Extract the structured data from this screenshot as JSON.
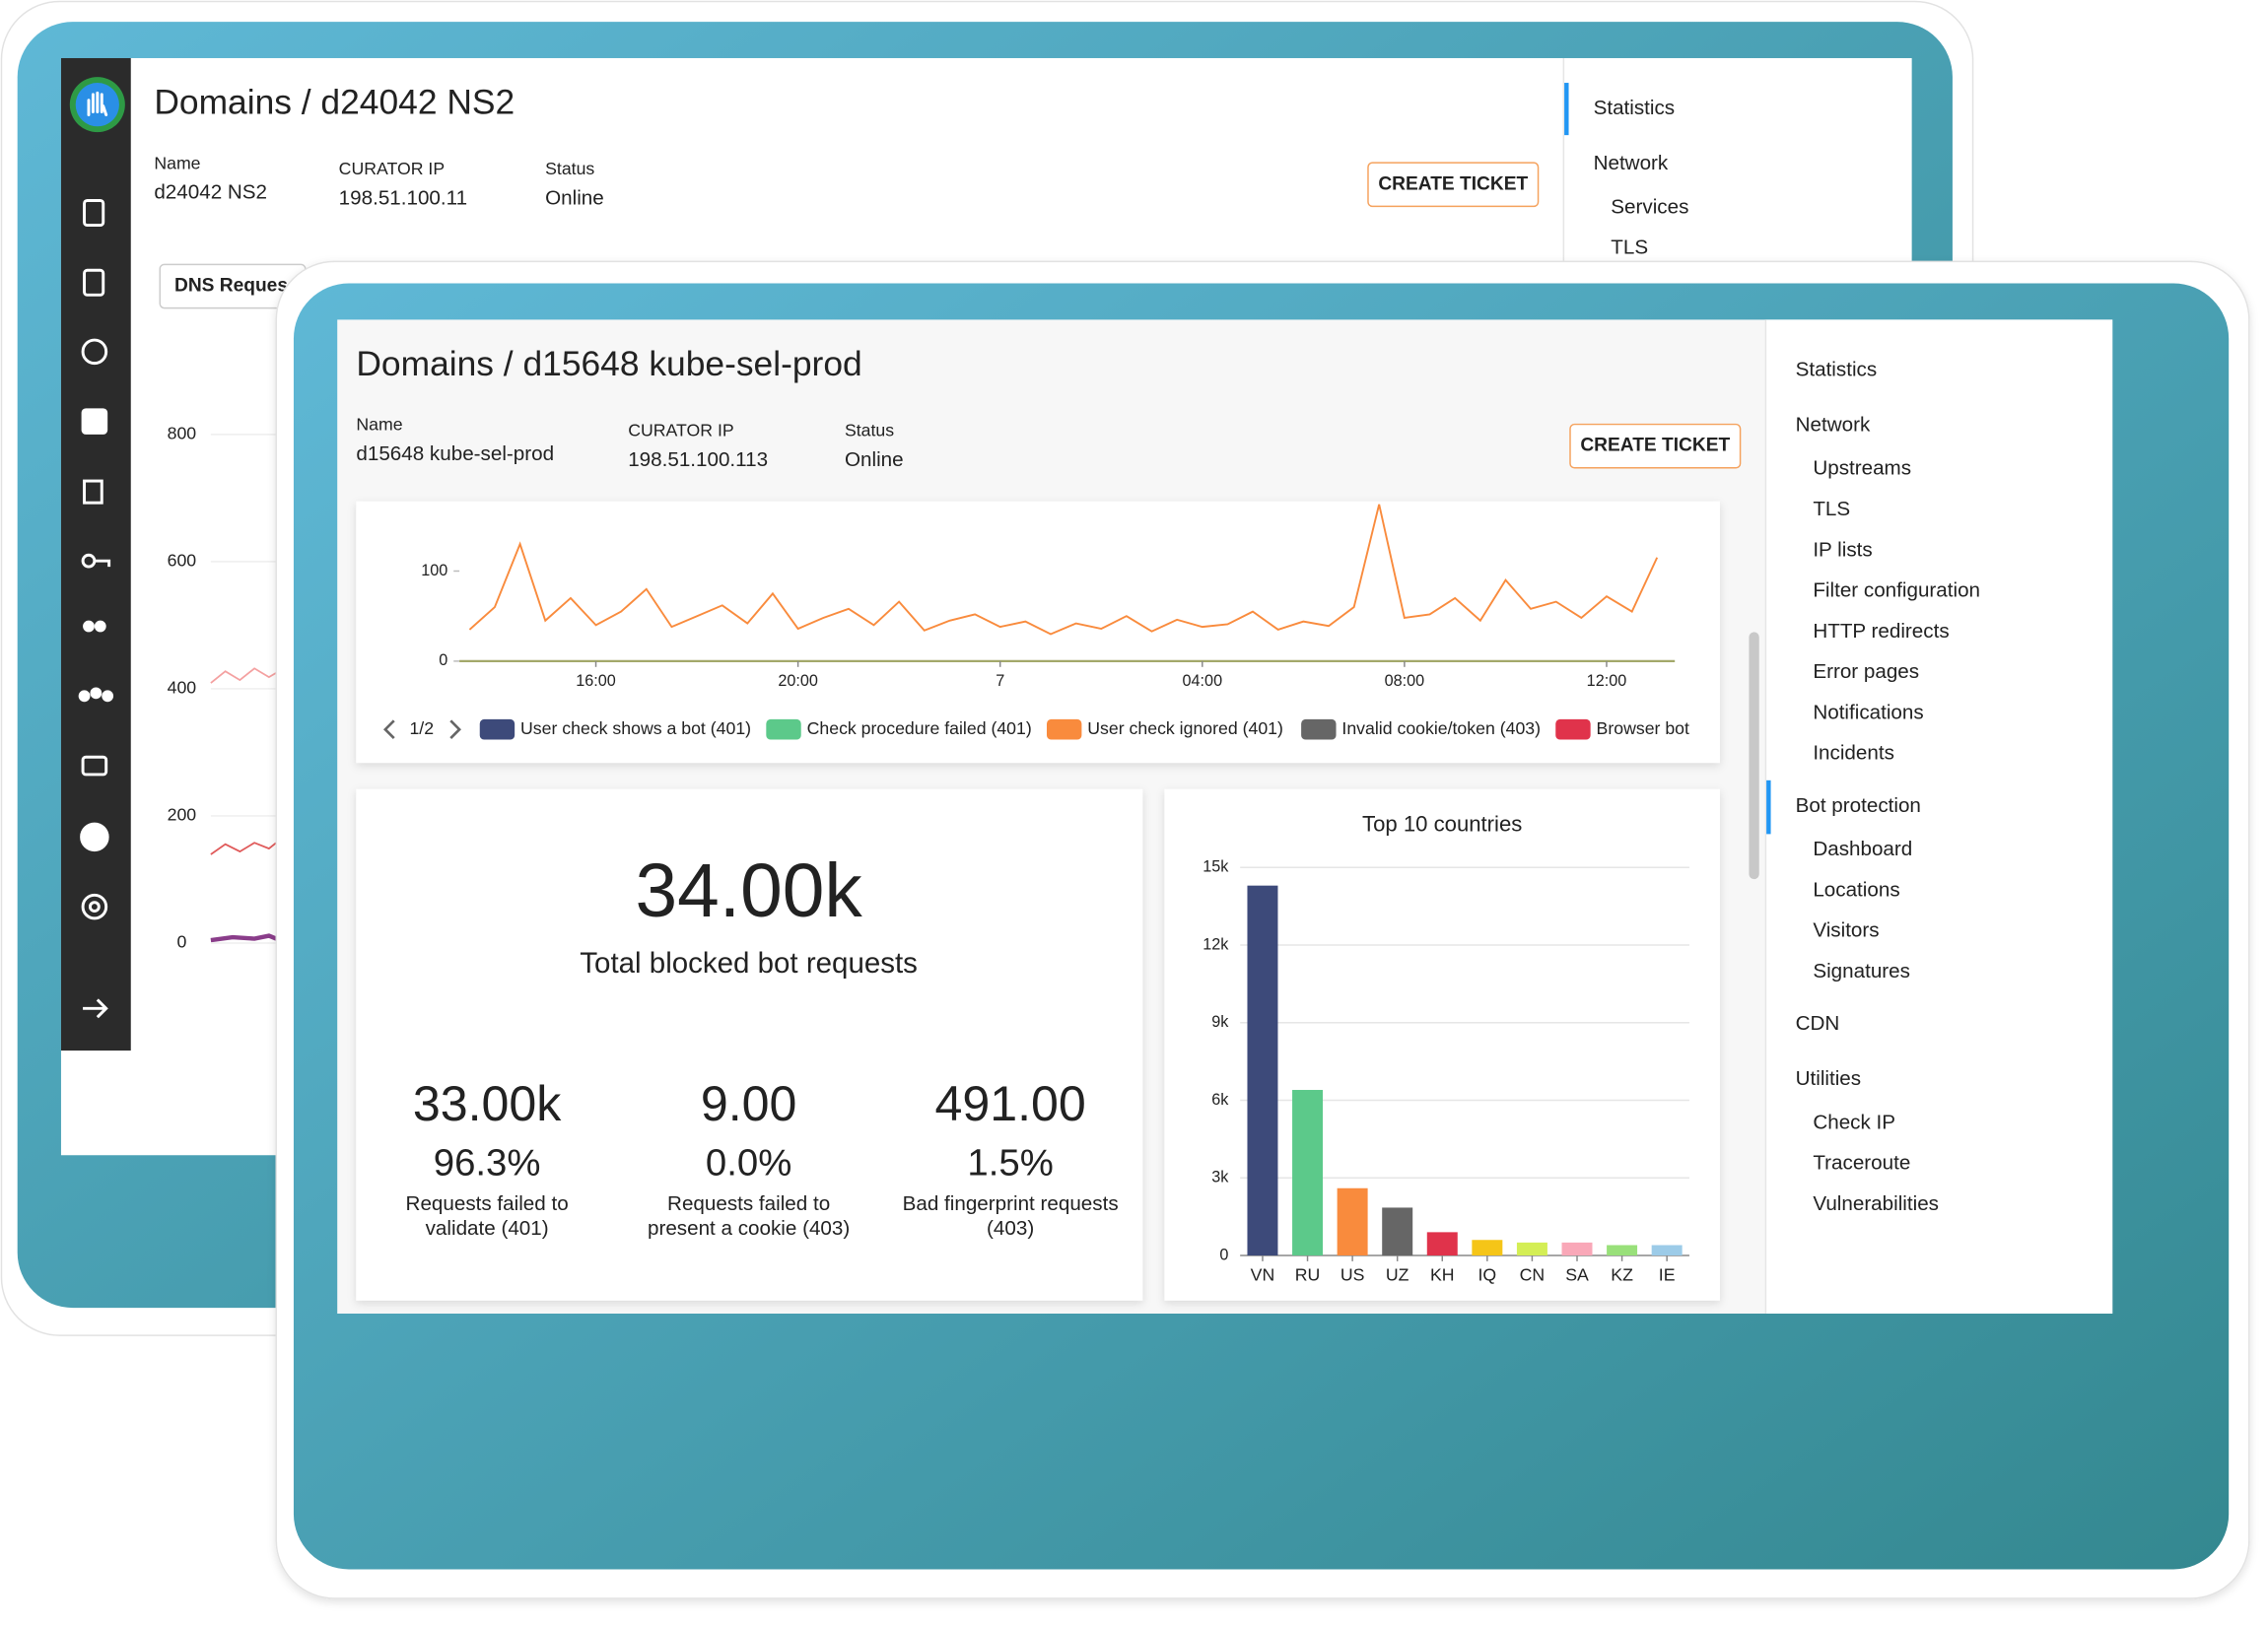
{
  "back_window": {
    "title": "Domains / d24042 NS2",
    "fields": [
      {
        "label": "Name",
        "value": "d24042 NS2"
      },
      {
        "label": "CURATOR IP",
        "value": "198.51.100.11"
      },
      {
        "label": "Status",
        "value": "Online"
      }
    ],
    "button": "CREATE TICKET",
    "nav": [
      "Statistics",
      "Network",
      "Services",
      "TLS"
    ],
    "tab": "DNS Reques",
    "yticks": [
      800,
      600,
      400,
      200,
      0
    ]
  },
  "front_window": {
    "title": "Domains / d15648 kube-sel-prod",
    "fields": [
      {
        "label": "Name",
        "value": "d15648 kube-sel-prod"
      },
      {
        "label": "CURATOR IP",
        "value": "198.51.100.113"
      },
      {
        "label": "Status",
        "value": "Online"
      }
    ],
    "button": "CREATE TICKET",
    "legend_page": "1/2",
    "summary": {
      "total": "34.00k",
      "total_label": "Total blocked bot requests",
      "items": [
        {
          "value": "33.00k",
          "percent": "96.3%",
          "label": [
            "Requests failed to",
            "validate (401)"
          ]
        },
        {
          "value": "9.00",
          "percent": "0.0%",
          "label": [
            "Requests failed to",
            "present a cookie (403)"
          ]
        },
        {
          "value": "491.00",
          "percent": "1.5%",
          "label": [
            "Bad fingerprint requests",
            "(403)"
          ]
        }
      ]
    },
    "nav": [
      {
        "text": "Statistics",
        "level": 0
      },
      {
        "text": "Network",
        "level": 0
      },
      {
        "text": "Upstreams",
        "level": 1
      },
      {
        "text": "TLS",
        "level": 1
      },
      {
        "text": "IP lists",
        "level": 1
      },
      {
        "text": "Filter configuration",
        "level": 1
      },
      {
        "text": "HTTP redirects",
        "level": 1
      },
      {
        "text": "Error pages",
        "level": 1
      },
      {
        "text": "Notifications",
        "level": 1
      },
      {
        "text": "Incidents",
        "level": 1
      },
      {
        "text": "Bot protection",
        "level": 0,
        "active": true
      },
      {
        "text": "Dashboard",
        "level": 1,
        "active": true
      },
      {
        "text": "Locations",
        "level": 1
      },
      {
        "text": "Visitors",
        "level": 1
      },
      {
        "text": "Signatures",
        "level": 1
      },
      {
        "text": "CDN",
        "level": 0
      },
      {
        "text": "Utilities",
        "level": 0
      },
      {
        "text": "Check IP",
        "level": 1
      },
      {
        "text": "Traceroute",
        "level": 1
      },
      {
        "text": "Vulnerabilities",
        "level": 1
      }
    ]
  },
  "chart_data": [
    {
      "type": "line",
      "x": [
        13.5,
        14,
        14.5,
        15,
        15.5,
        16,
        16.5,
        17,
        17.5,
        18,
        18.5,
        19,
        19.5,
        20,
        20.5,
        21,
        21.5,
        22,
        22.5,
        23,
        23.5,
        24,
        24.5,
        25,
        25.5,
        26,
        26.5,
        27,
        27.5,
        28,
        28.5,
        29,
        29.5,
        30,
        30.5,
        31,
        31.5,
        32,
        32.5,
        33,
        33.5,
        34,
        34.5,
        35,
        35.5,
        36,
        36.5,
        37
      ],
      "xlim": [
        13.3,
        37.35
      ],
      "xticks": [
        {
          "value": 16,
          "label": "16:00"
        },
        {
          "value": 20,
          "label": "20:00"
        },
        {
          "value": 24,
          "label": "7"
        },
        {
          "value": 28,
          "label": "04:00"
        },
        {
          "value": 32,
          "label": "08:00"
        },
        {
          "value": 36,
          "label": "12:00"
        }
      ],
      "ylim": [
        0,
        175
      ],
      "yticks": [
        0,
        100
      ],
      "series": [
        {
          "name": "User check shows a bot (401)",
          "color": "#3d4a7a"
        },
        {
          "name": "Check procedure failed (401)",
          "color": "#5cc98a"
        },
        {
          "name": "User check ignored (401)",
          "color": "#f98b3d",
          "values": [
            35,
            60,
            130,
            45,
            70,
            40,
            55,
            80,
            38,
            50,
            62,
            42,
            75,
            36,
            48,
            58,
            40,
            66,
            34,
            45,
            52,
            38,
            44,
            30,
            42,
            36,
            50,
            33,
            46,
            38,
            41,
            55,
            35,
            44,
            39,
            60,
            174,
            48,
            52,
            70,
            45,
            90,
            58,
            66,
            48,
            72,
            55,
            115
          ]
        },
        {
          "name": "Invalid cookie/token (403)",
          "color": "#666666"
        },
        {
          "name": "Browser bot",
          "color": "#e0334b"
        }
      ]
    },
    {
      "type": "bar",
      "title": "Top 10 countries",
      "categories": [
        "VN",
        "RU",
        "US",
        "UZ",
        "KH",
        "IQ",
        "CN",
        "SA",
        "KZ",
        "IE"
      ],
      "values": [
        14300,
        6400,
        2600,
        1850,
        900,
        600,
        500,
        500,
        400,
        400
      ],
      "colors": [
        "#3d4a7a",
        "#5cc98a",
        "#f98b3d",
        "#666666",
        "#e0334b",
        "#f5c518",
        "#d4ee55",
        "#f9a8b8",
        "#99e07a",
        "#9ccbe8"
      ],
      "ylim": [
        0,
        15000
      ],
      "yticks": [
        {
          "value": 0,
          "label": "0"
        },
        {
          "value": 3000,
          "label": "3k"
        },
        {
          "value": 6000,
          "label": "6k"
        },
        {
          "value": 9000,
          "label": "9k"
        },
        {
          "value": 12000,
          "label": "12k"
        },
        {
          "value": 15000,
          "label": "15k"
        }
      ],
      "grid": true
    }
  ]
}
